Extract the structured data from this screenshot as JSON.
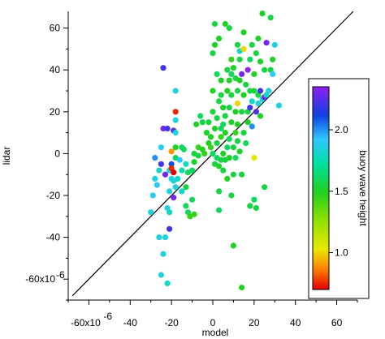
{
  "chart_data": {
    "type": "scatter",
    "xlabel": "model",
    "ylabel": "lidar",
    "xlim": [
      -70,
      70
    ],
    "ylim": [
      -70,
      68
    ],
    "x_ticks": [
      {
        "v": -60,
        "label": "-60x10"
      },
      {
        "v": -40,
        "label": "-40"
      },
      {
        "v": -20,
        "label": "-20"
      },
      {
        "v": 0,
        "label": "0"
      },
      {
        "v": 20,
        "label": "20"
      },
      {
        "v": 40,
        "label": "40"
      },
      {
        "v": 60,
        "label": "60"
      }
    ],
    "y_ticks": [
      {
        "v": 60,
        "label": "60"
      },
      {
        "v": 40,
        "label": "40"
      },
      {
        "v": 20,
        "label": "20"
      },
      {
        "v": 0,
        "label": "0"
      },
      {
        "v": -20,
        "label": "-20"
      },
      {
        "v": -40,
        "label": "-40"
      },
      {
        "v": -60,
        "label": "-60x10"
      }
    ],
    "exponent_label": "-6",
    "reference_line": {
      "from": [
        -68,
        -68
      ],
      "to": [
        68,
        68
      ]
    },
    "colorbar": {
      "label": "buoy wave height",
      "range": [
        0.7,
        2.35
      ],
      "ticks": [
        {
          "v": 1.0,
          "label": "1.0"
        },
        {
          "v": 1.5,
          "label": "1.5"
        },
        {
          "v": 2.0,
          "label": "2.0"
        }
      ],
      "placement": "right inside plot"
    },
    "points": [
      {
        "x": -30,
        "y": -28,
        "c": 1.85
      },
      {
        "x": -29,
        "y": -20,
        "c": 1.9
      },
      {
        "x": -28,
        "y": -12,
        "c": 1.85
      },
      {
        "x": -28,
        "y": -2,
        "c": 2.0
      },
      {
        "x": -27,
        "y": -15,
        "c": 1.9
      },
      {
        "x": -26,
        "y": -8,
        "c": 1.8
      },
      {
        "x": -26,
        "y": -40,
        "c": 1.85
      },
      {
        "x": -25,
        "y": -58,
        "c": 1.85
      },
      {
        "x": -25,
        "y": -5,
        "c": 2.2
      },
      {
        "x": -25,
        "y": 3,
        "c": 1.9
      },
      {
        "x": -24,
        "y": 12,
        "c": 2.3
      },
      {
        "x": -24,
        "y": 41,
        "c": 2.2
      },
      {
        "x": -24,
        "y": -48,
        "c": 1.85
      },
      {
        "x": -23,
        "y": -10,
        "c": 2.3
      },
      {
        "x": -23,
        "y": -40,
        "c": 1.85
      },
      {
        "x": -22,
        "y": -62,
        "c": 1.8
      },
      {
        "x": -22,
        "y": 12,
        "c": 2.2
      },
      {
        "x": -22,
        "y": -26,
        "c": 1.85
      },
      {
        "x": -21,
        "y": -8,
        "c": 1.85
      },
      {
        "x": -21,
        "y": -28,
        "c": 1.8
      },
      {
        "x": -21,
        "y": -36,
        "c": 2.2
      },
      {
        "x": -21,
        "y": -18,
        "c": 1.85
      },
      {
        "x": -20,
        "y": 1,
        "c": 0.9
      },
      {
        "x": -20,
        "y": -5,
        "c": 2.1
      },
      {
        "x": -20,
        "y": -7,
        "c": 0.75
      },
      {
        "x": -20,
        "y": -12,
        "c": 1.85
      },
      {
        "x": -19,
        "y": 11,
        "c": 2.25
      },
      {
        "x": -19,
        "y": -9,
        "c": 0.7
      },
      {
        "x": -19,
        "y": -13,
        "c": 1.85
      },
      {
        "x": -19,
        "y": -21,
        "c": 2.3
      },
      {
        "x": -18,
        "y": 30,
        "c": 1.85
      },
      {
        "x": -18,
        "y": 20,
        "c": 0.75
      },
      {
        "x": -18,
        "y": 16,
        "c": 1.85
      },
      {
        "x": -18,
        "y": 10,
        "c": 1.85
      },
      {
        "x": -18,
        "y": 3,
        "c": 1.5
      },
      {
        "x": -18,
        "y": -2,
        "c": 1.6
      },
      {
        "x": -18,
        "y": -16,
        "c": 1.85
      },
      {
        "x": -17,
        "y": -12,
        "c": 1.8
      },
      {
        "x": -16,
        "y": -3,
        "c": 1.9
      },
      {
        "x": -15,
        "y": -8,
        "c": 1.75
      },
      {
        "x": -15,
        "y": 3,
        "c": 1.6
      },
      {
        "x": -15,
        "y": -18,
        "c": 1.8
      },
      {
        "x": -14,
        "y": 2,
        "c": 1.6
      },
      {
        "x": -13,
        "y": -5,
        "c": 1.8
      },
      {
        "x": -13,
        "y": -16,
        "c": 1.55
      },
      {
        "x": -13,
        "y": -25,
        "c": 1.6
      },
      {
        "x": -12,
        "y": -28,
        "c": 1.6
      },
      {
        "x": -12,
        "y": -9,
        "c": 1.6
      },
      {
        "x": -11,
        "y": -30,
        "c": 1.45
      },
      {
        "x": -10,
        "y": -22,
        "c": 1.6
      },
      {
        "x": -10,
        "y": -8,
        "c": 1.6
      },
      {
        "x": -9,
        "y": -4,
        "c": 1.5
      },
      {
        "x": -9,
        "y": -29,
        "c": 1.45
      },
      {
        "x": -9,
        "y": 0,
        "c": 1.55
      },
      {
        "x": -8,
        "y": 14,
        "c": 1.5
      },
      {
        "x": -7,
        "y": -1,
        "c": 1.55
      },
      {
        "x": -7,
        "y": 3,
        "c": 1.45
      },
      {
        "x": -6,
        "y": 18,
        "c": 1.6
      },
      {
        "x": -5,
        "y": 2,
        "c": 1.5
      },
      {
        "x": -5,
        "y": 15,
        "c": 1.55
      },
      {
        "x": -4,
        "y": 0,
        "c": 1.45
      },
      {
        "x": -3,
        "y": 10,
        "c": 1.5
      },
      {
        "x": -2,
        "y": 5,
        "c": 1.5
      },
      {
        "x": -2,
        "y": 15,
        "c": 1.55
      },
      {
        "x": -1,
        "y": 3,
        "c": 1.45
      },
      {
        "x": -1,
        "y": 8,
        "c": 1.5
      },
      {
        "x": 0,
        "y": 48,
        "c": 1.55
      },
      {
        "x": 0,
        "y": 30,
        "c": 1.5
      },
      {
        "x": 0,
        "y": 20,
        "c": 1.55
      },
      {
        "x": 0,
        "y": 0,
        "c": 1.6
      },
      {
        "x": 1,
        "y": 62,
        "c": 1.55
      },
      {
        "x": 1,
        "y": 52,
        "c": 1.5
      },
      {
        "x": 1,
        "y": 12,
        "c": 1.5
      },
      {
        "x": 1,
        "y": -5,
        "c": 1.55
      },
      {
        "x": 2,
        "y": 38,
        "c": 1.6
      },
      {
        "x": 2,
        "y": 5,
        "c": 1.55
      },
      {
        "x": 2,
        "y": -2,
        "c": 1.6
      },
      {
        "x": 2,
        "y": 17,
        "c": 1.55
      },
      {
        "x": 3,
        "y": 55,
        "c": 1.5
      },
      {
        "x": 3,
        "y": 25,
        "c": 1.55
      },
      {
        "x": 3,
        "y": -6,
        "c": 1.5
      },
      {
        "x": 3,
        "y": -18,
        "c": 1.55
      },
      {
        "x": 3,
        "y": -27,
        "c": 1.6
      },
      {
        "x": 4,
        "y": 35,
        "c": 1.5
      },
      {
        "x": 4,
        "y": 28,
        "c": 1.55
      },
      {
        "x": 4,
        "y": 12,
        "c": 1.6
      },
      {
        "x": 4,
        "y": 8,
        "c": 1.45
      },
      {
        "x": 4,
        "y": -3,
        "c": 1.55
      },
      {
        "x": 5,
        "y": 22,
        "c": 1.5
      },
      {
        "x": 5,
        "y": 14,
        "c": 1.6
      },
      {
        "x": 5,
        "y": 0,
        "c": 1.5
      },
      {
        "x": 5,
        "y": -8,
        "c": 1.55
      },
      {
        "x": 6,
        "y": 18,
        "c": 1.55
      },
      {
        "x": 6,
        "y": 10,
        "c": 1.5
      },
      {
        "x": 6,
        "y": -3,
        "c": 1.55
      },
      {
        "x": 7,
        "y": 40,
        "c": 1.55
      },
      {
        "x": 7,
        "y": 30,
        "c": 1.5
      },
      {
        "x": 7,
        "y": 3,
        "c": 1.6
      },
      {
        "x": 7,
        "y": -12,
        "c": 1.5
      },
      {
        "x": 8,
        "y": 60,
        "c": 1.55
      },
      {
        "x": 8,
        "y": 35,
        "c": 1.5
      },
      {
        "x": 8,
        "y": 22,
        "c": 1.55
      },
      {
        "x": 8,
        "y": 7,
        "c": 1.6
      },
      {
        "x": 8,
        "y": -2,
        "c": 1.5
      },
      {
        "x": 9,
        "y": 45,
        "c": 1.45
      },
      {
        "x": 9,
        "y": 38,
        "c": 1.6
      },
      {
        "x": 9,
        "y": 28,
        "c": 1.55
      },
      {
        "x": 9,
        "y": 15,
        "c": 1.5
      },
      {
        "x": 9,
        "y": -20,
        "c": 1.55
      },
      {
        "x": 10,
        "y": 41,
        "c": 1.5
      },
      {
        "x": 10,
        "y": 3,
        "c": 1.55
      },
      {
        "x": 10,
        "y": -44,
        "c": 1.5
      },
      {
        "x": 10,
        "y": -10,
        "c": 1.55
      },
      {
        "x": 11,
        "y": 36,
        "c": 1.55
      },
      {
        "x": 11,
        "y": 20,
        "c": 1.5
      },
      {
        "x": 11,
        "y": 10,
        "c": 1.45
      },
      {
        "x": 11,
        "y": -2,
        "c": 1.6
      },
      {
        "x": 12,
        "y": 30,
        "c": 1.55
      },
      {
        "x": 12,
        "y": 24,
        "c": 1.0
      },
      {
        "x": 12,
        "y": 14,
        "c": 1.5
      },
      {
        "x": 12,
        "y": 6,
        "c": 1.55
      },
      {
        "x": 13,
        "y": 35,
        "c": 1.5
      },
      {
        "x": 13,
        "y": 45,
        "c": 1.55
      },
      {
        "x": 13,
        "y": 1,
        "c": 1.5
      },
      {
        "x": 14,
        "y": 38,
        "c": 2.3
      },
      {
        "x": 14,
        "y": 20,
        "c": 1.55
      },
      {
        "x": 14,
        "y": -10,
        "c": 1.55
      },
      {
        "x": 14,
        "y": -64,
        "c": 1.5
      },
      {
        "x": 15,
        "y": 58,
        "c": 1.5
      },
      {
        "x": 15,
        "y": 28,
        "c": 1.5
      },
      {
        "x": 15,
        "y": 10,
        "c": 1.55
      },
      {
        "x": 16,
        "y": 33,
        "c": 1.55
      },
      {
        "x": 16,
        "y": 5,
        "c": 1.6
      },
      {
        "x": 17,
        "y": 40,
        "c": 2.35
      },
      {
        "x": 17,
        "y": 20,
        "c": 1.55
      },
      {
        "x": 17,
        "y": 15,
        "c": 1.5
      },
      {
        "x": 18,
        "y": 30,
        "c": 1.55
      },
      {
        "x": 18,
        "y": 45,
        "c": 1.6
      },
      {
        "x": 18,
        "y": 22,
        "c": 2.2
      },
      {
        "x": 18,
        "y": -25,
        "c": 1.55
      },
      {
        "x": 19,
        "y": 25,
        "c": 1.8
      },
      {
        "x": 19,
        "y": 52,
        "c": 1.55
      },
      {
        "x": 19,
        "y": 13,
        "c": 2.0
      },
      {
        "x": 20,
        "y": 38,
        "c": 1.5
      },
      {
        "x": 20,
        "y": 30,
        "c": 1.55
      },
      {
        "x": 20,
        "y": -22,
        "c": 1.6
      },
      {
        "x": 20,
        "y": -2,
        "c": 1.05
      },
      {
        "x": 21,
        "y": 48,
        "c": 1.55
      },
      {
        "x": 21,
        "y": 20,
        "c": 2.25
      },
      {
        "x": 21,
        "y": -26,
        "c": 1.55
      },
      {
        "x": 22,
        "y": 55,
        "c": 1.5
      },
      {
        "x": 22,
        "y": 28,
        "c": 1.55
      },
      {
        "x": 22,
        "y": 24,
        "c": 1.85
      },
      {
        "x": 23,
        "y": 44,
        "c": 1.5
      },
      {
        "x": 23,
        "y": 30,
        "c": 2.2
      },
      {
        "x": 23,
        "y": 18,
        "c": 1.5
      },
      {
        "x": 24,
        "y": 67,
        "c": 1.5
      },
      {
        "x": 24,
        "y": 26,
        "c": 1.85
      },
      {
        "x": 25,
        "y": 40,
        "c": 1.55
      },
      {
        "x": 25,
        "y": 27,
        "c": 2.3
      },
      {
        "x": 25,
        "y": -16,
        "c": 1.55
      },
      {
        "x": 26,
        "y": 53,
        "c": 2.3
      },
      {
        "x": 26,
        "y": 28,
        "c": 1.8
      },
      {
        "x": 27,
        "y": 30,
        "c": 1.85
      },
      {
        "x": 28,
        "y": 65,
        "c": 1.55
      },
      {
        "x": 28,
        "y": 40,
        "c": 1.55
      },
      {
        "x": 29,
        "y": 38,
        "c": 1.9
      },
      {
        "x": 29,
        "y": 45,
        "c": 1.5
      },
      {
        "x": 30,
        "y": 52,
        "c": 1.85
      },
      {
        "x": 32,
        "y": 23,
        "c": 1.85
      },
      {
        "x": 13,
        "y": 49,
        "c": 1.8
      },
      {
        "x": 12,
        "y": 52,
        "c": 1.55
      },
      {
        "x": 6,
        "y": 62,
        "c": 1.5
      },
      {
        "x": 15,
        "y": 50,
        "c": 1.0
      }
    ]
  }
}
